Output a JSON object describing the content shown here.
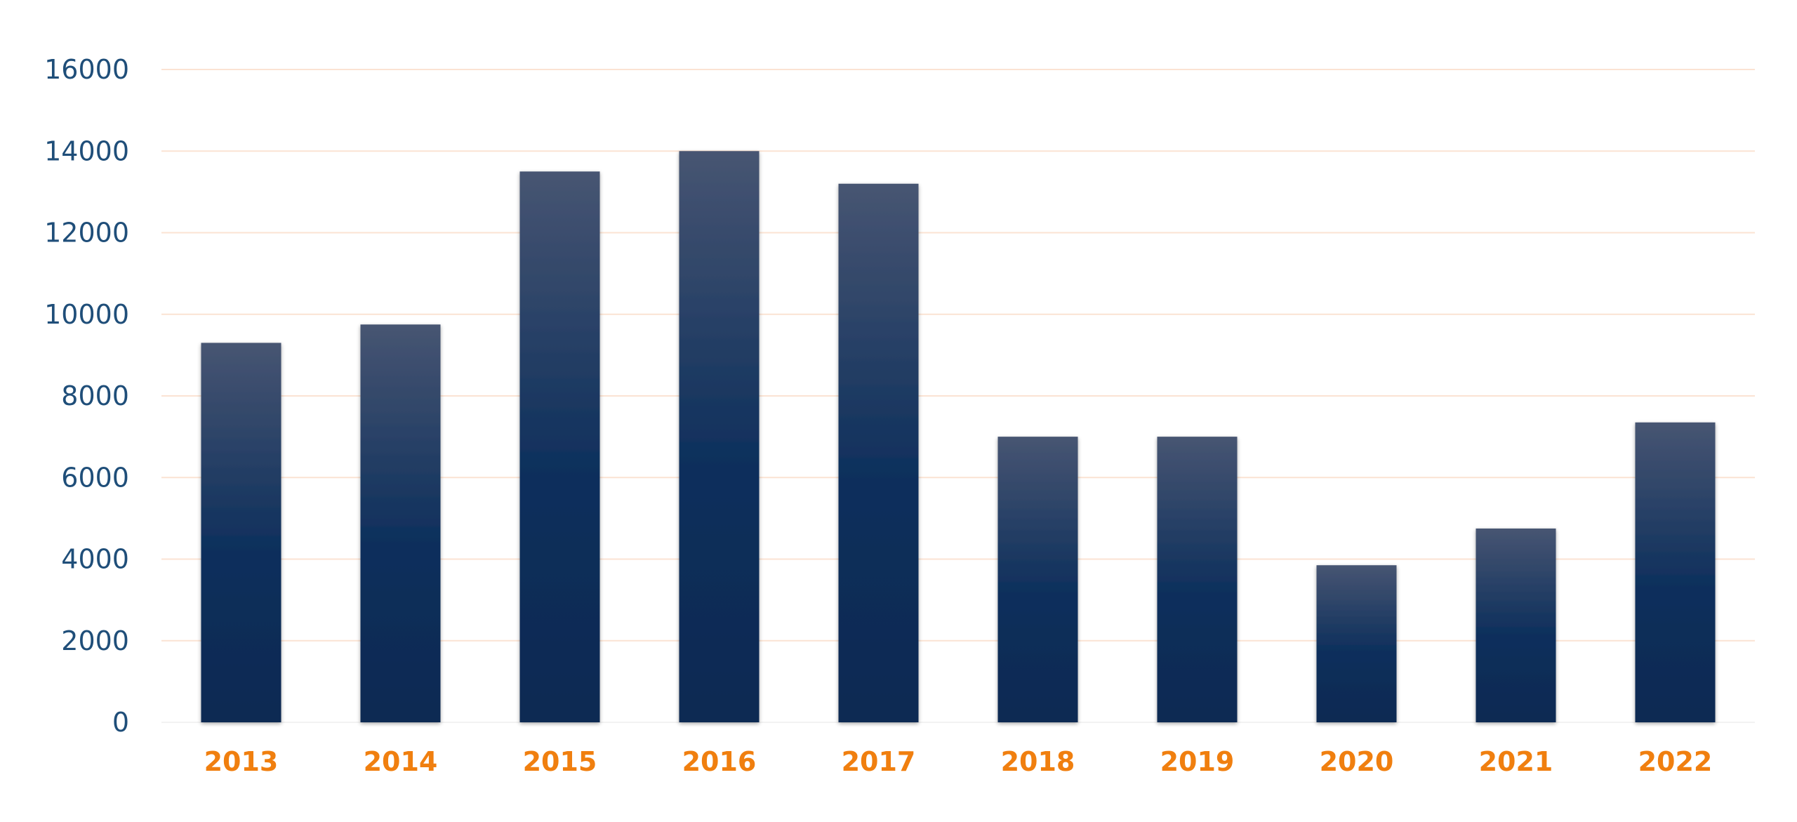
{
  "chart_data": {
    "type": "bar",
    "categories": [
      "2013",
      "2014",
      "2015",
      "2016",
      "2017",
      "2018",
      "2019",
      "2020",
      "2021",
      "2022"
    ],
    "values": [
      9300,
      9750,
      13500,
      14000,
      13200,
      7000,
      7000,
      3850,
      4750,
      7350
    ],
    "title": "",
    "xlabel": "",
    "ylabel": "",
    "ylim": [
      0,
      16000
    ],
    "yticks": [
      0,
      2000,
      4000,
      6000,
      8000,
      10000,
      12000,
      14000,
      16000
    ],
    "grid": true,
    "legend": "none",
    "colors": {
      "bar_top": "#475572",
      "bar_bottom": "#082a52",
      "y_tick_label": "#1f4e79",
      "x_tick_label": "#f07f0f",
      "gridline": "#fbe3d3",
      "baseline": "#f2f2f2"
    }
  }
}
